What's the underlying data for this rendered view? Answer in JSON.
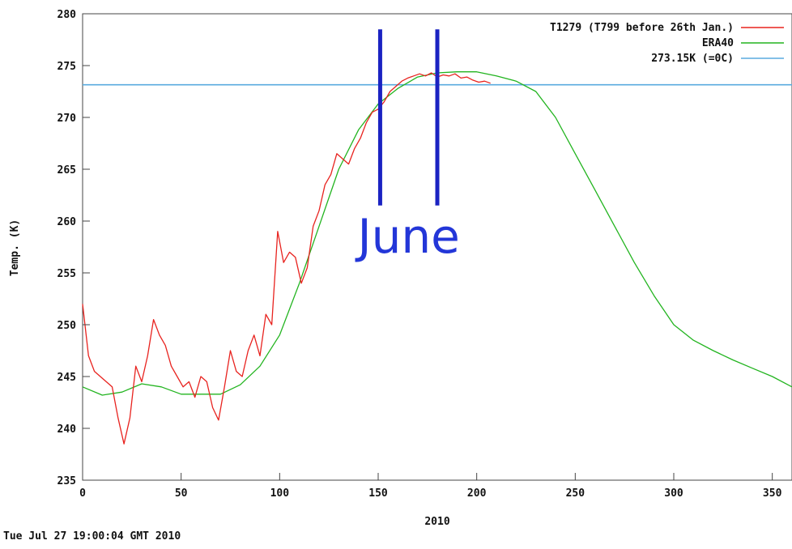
{
  "chart_data": {
    "type": "line",
    "xlabel": "2010",
    "ylabel": "Temp. (K)",
    "xlim": [
      0,
      360
    ],
    "ylim": [
      235,
      280
    ],
    "x_ticks": [
      0,
      50,
      100,
      150,
      200,
      250,
      300,
      350
    ],
    "y_ticks": [
      235,
      240,
      245,
      250,
      255,
      260,
      265,
      270,
      275,
      280
    ],
    "grid": false,
    "legend_position": "top-right",
    "series": [
      {
        "name": "T1279 (T799 before 26th Jan.)",
        "color": "#e8231f",
        "x": [
          0,
          3,
          6,
          9,
          12,
          15,
          18,
          21,
          24,
          27,
          30,
          33,
          36,
          39,
          42,
          45,
          48,
          51,
          54,
          57,
          60,
          63,
          66,
          69,
          72,
          75,
          78,
          81,
          84,
          87,
          90,
          93,
          96,
          99,
          102,
          105,
          108,
          111,
          114,
          117,
          120,
          123,
          126,
          129,
          132,
          135,
          138,
          141,
          144,
          147,
          150,
          153,
          156,
          159,
          162,
          165,
          168,
          171,
          174,
          177,
          180,
          183,
          186,
          189,
          192,
          195,
          198,
          201,
          204,
          207
        ],
        "values": [
          252,
          247,
          245.5,
          245,
          244.5,
          244,
          241,
          238.5,
          241,
          246,
          244.5,
          247,
          250.5,
          249,
          248,
          246,
          245,
          244,
          244.5,
          243,
          245,
          244.5,
          242,
          240.8,
          244,
          247.5,
          245.5,
          245,
          247.5,
          249,
          247,
          251,
          250,
          259,
          256,
          257,
          256.5,
          254,
          255.5,
          259.5,
          261,
          263.5,
          264.5,
          266.5,
          266,
          265.5,
          267,
          268,
          269.5,
          270.5,
          270.8,
          271.5,
          272.5,
          273,
          273.5,
          273.8,
          274,
          274.2,
          274,
          274.3,
          273.9,
          274.1,
          274,
          274.2,
          273.8,
          273.9,
          273.6,
          273.4,
          273.5,
          273.3
        ]
      },
      {
        "name": "ERA40",
        "color": "#22b41f",
        "x": [
          0,
          10,
          20,
          30,
          40,
          50,
          60,
          70,
          80,
          90,
          100,
          110,
          120,
          130,
          140,
          150,
          160,
          170,
          180,
          190,
          200,
          210,
          220,
          230,
          240,
          250,
          260,
          270,
          280,
          290,
          300,
          310,
          320,
          330,
          340,
          350,
          360
        ],
        "values": [
          244,
          243.2,
          243.5,
          244.3,
          244,
          243.3,
          243.3,
          243.3,
          244.2,
          246,
          249,
          254,
          259.5,
          265,
          268.8,
          271.3,
          272.8,
          273.9,
          274.3,
          274.4,
          274.4,
          274,
          273.5,
          272.5,
          270,
          266.5,
          263,
          259.5,
          256,
          252.8,
          250,
          248.5,
          247.5,
          246.6,
          245.8,
          245,
          244
        ]
      },
      {
        "name": "273.15K (=0C)",
        "color": "#5aabdf",
        "x": [
          0,
          360
        ],
        "values": [
          273.15,
          273.15
        ]
      }
    ],
    "annotations": [
      {
        "text": "June",
        "x_start": 151,
        "x_end": 180
      }
    ]
  },
  "footer": {
    "timestamp": "Tue Jul 27 19:00:04 GMT 2010"
  }
}
